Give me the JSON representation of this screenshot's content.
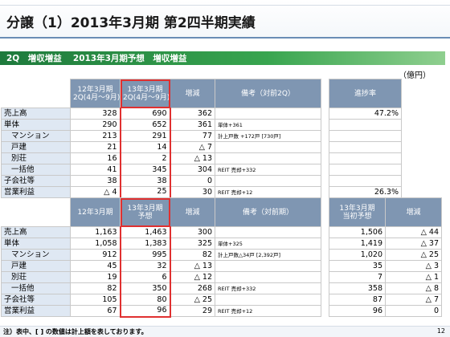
{
  "title": "分譲（1）2013年3月期 第2四半期実績",
  "subhead": "2Q　増収増益　 2013年3月期予想　増収増益",
  "unit": "（億円）",
  "table1": {
    "headers": [
      "12年3月期\n2Q(4月～9月)",
      "13年3月期\n2Q(4月～9月)",
      "増減",
      "備考（対前2Q）",
      "進捗率"
    ],
    "rows": [
      {
        "label": "売上高",
        "a": "328",
        "b": "690",
        "c": "362",
        "note": "",
        "r": "47.2%",
        "indent": false
      },
      {
        "label": "単体",
        "a": "290",
        "b": "652",
        "c": "361",
        "note": "単体+361",
        "r": "",
        "indent": false
      },
      {
        "label": "マンション",
        "a": "213",
        "b": "291",
        "c": "77",
        "note": "計上戸数 +172戸 [730戸]",
        "r": "",
        "indent": true
      },
      {
        "label": "戸建",
        "a": "21",
        "b": "14",
        "c": "△ 7",
        "note": "",
        "r": "",
        "indent": true
      },
      {
        "label": "別荘",
        "a": "16",
        "b": "2",
        "c": "△ 13",
        "note": "",
        "r": "",
        "indent": true
      },
      {
        "label": "一括他",
        "a": "41",
        "b": "345",
        "c": "304",
        "note": "REIT 売却+332",
        "r": "",
        "indent": true
      },
      {
        "label": "子会社等",
        "a": "38",
        "b": "38",
        "c": "0",
        "note": "",
        "r": "",
        "indent": false
      },
      {
        "label": "営業利益",
        "a": "△ 4",
        "b": "25",
        "c": "30",
        "note": "REIT 売却+12",
        "r": "26.3%",
        "indent": false
      }
    ]
  },
  "table2": {
    "headers": [
      "12年3月期",
      "13年3月期\n予想",
      "増減",
      "備考（対前期）",
      "13年3月期\n当初予想",
      "増減"
    ],
    "rows": [
      {
        "label": "売上高",
        "a": "1,163",
        "b": "1,463",
        "c": "300",
        "note": "",
        "d": "1,506",
        "e": "△ 44",
        "indent": false
      },
      {
        "label": "単体",
        "a": "1,058",
        "b": "1,383",
        "c": "325",
        "note": "単体+325",
        "d": "1,419",
        "e": "△ 37",
        "indent": false
      },
      {
        "label": "マンション",
        "a": "912",
        "b": "995",
        "c": "82",
        "note": "計上戸数△34戸 [2,392戸]",
        "d": "1,020",
        "e": "△ 25",
        "indent": true
      },
      {
        "label": "戸建",
        "a": "45",
        "b": "32",
        "c": "△ 13",
        "note": "",
        "d": "35",
        "e": "△ 3",
        "indent": true
      },
      {
        "label": "別荘",
        "a": "19",
        "b": "6",
        "c": "△ 12",
        "note": "",
        "d": "7",
        "e": "△ 1",
        "indent": true
      },
      {
        "label": "一括他",
        "a": "82",
        "b": "350",
        "c": "268",
        "note": "REIT 売却+332",
        "d": "358",
        "e": "△ 8",
        "indent": true
      },
      {
        "label": "子会社等",
        "a": "105",
        "b": "80",
        "c": "△ 25",
        "note": "",
        "d": "87",
        "e": "△ 7",
        "indent": false
      },
      {
        "label": "営業利益",
        "a": "67",
        "b": "96",
        "c": "29",
        "note": "REIT 売却+12",
        "d": "96",
        "e": "0",
        "indent": false
      }
    ]
  },
  "footer": "注）表中、[ ] の数値は計上額を表しております。",
  "page": "12",
  "colors": {
    "header_bg": "#7f96b2",
    "label_bg": "#dfe8f3",
    "highlight": "#e03030",
    "green": "#2e8b45"
  }
}
